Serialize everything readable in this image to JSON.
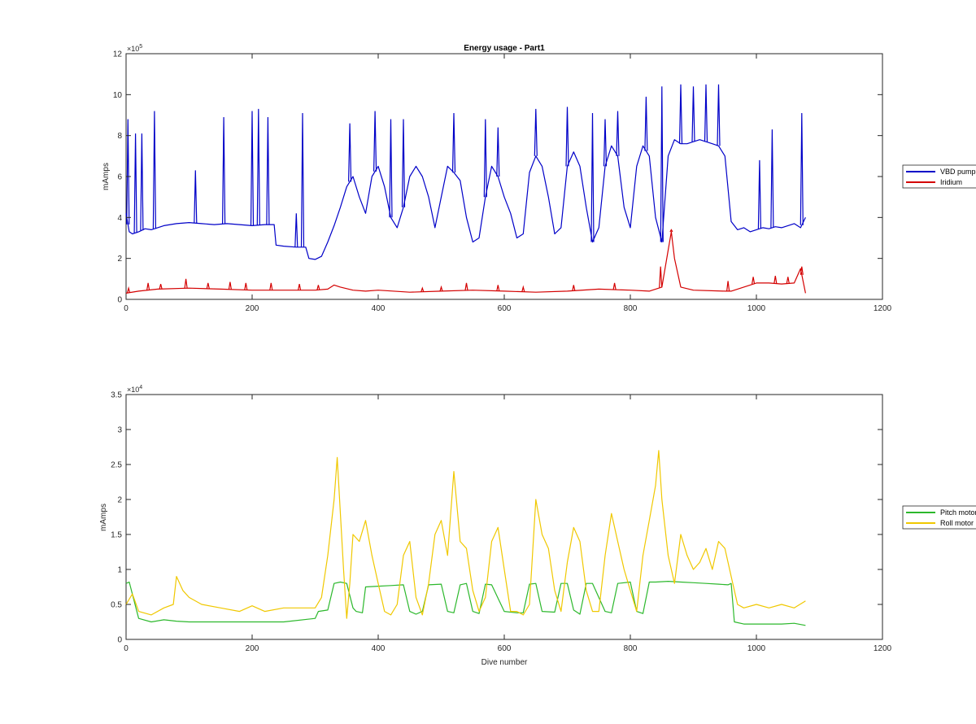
{
  "figure": {
    "background": "#ffffff"
  },
  "chart_data": [
    {
      "type": "line",
      "title": "Energy usage - Part1",
      "xlabel": "",
      "ylabel": "mAmps",
      "xlim": [
        0,
        1200
      ],
      "ylim": [
        0,
        1200000
      ],
      "xticks": [
        0,
        200,
        400,
        600,
        800,
        1000,
        1200
      ],
      "yticks": [
        0,
        2,
        4,
        6,
        8,
        10,
        12
      ],
      "y_exponent_label": "×10",
      "y_exponent": "5",
      "grid": false,
      "legend": "outside-right",
      "series": [
        {
          "name": "VBD pump",
          "color": "#0000c8",
          "x": [
            0,
            5,
            10,
            20,
            30,
            40,
            50,
            60,
            80,
            100,
            120,
            140,
            160,
            180,
            200,
            220,
            235,
            238,
            250,
            270,
            285,
            290,
            300,
            310,
            320,
            330,
            340,
            350,
            360,
            370,
            380,
            390,
            400,
            410,
            420,
            430,
            440,
            450,
            460,
            470,
            480,
            490,
            500,
            510,
            520,
            530,
            540,
            550,
            560,
            570,
            580,
            590,
            600,
            610,
            620,
            630,
            640,
            650,
            660,
            670,
            680,
            690,
            700,
            710,
            720,
            730,
            740,
            750,
            760,
            770,
            780,
            790,
            800,
            810,
            820,
            830,
            840,
            850,
            860,
            870,
            880,
            890,
            900,
            910,
            920,
            930,
            940,
            950,
            960,
            970,
            980,
            990,
            1000,
            1010,
            1020,
            1030,
            1040,
            1050,
            1060,
            1070,
            1078
          ],
          "y": [
            420000,
            330000,
            320000,
            330000,
            345000,
            340000,
            350000,
            360000,
            370000,
            375000,
            370000,
            365000,
            370000,
            365000,
            360000,
            365000,
            365000,
            265000,
            260000,
            255000,
            255000,
            200000,
            195000,
            210000,
            280000,
            360000,
            450000,
            550000,
            600000,
            500000,
            420000,
            600000,
            650000,
            550000,
            400000,
            350000,
            450000,
            600000,
            650000,
            600000,
            500000,
            350000,
            500000,
            650000,
            620000,
            580000,
            400000,
            280000,
            300000,
            500000,
            650000,
            600000,
            500000,
            420000,
            300000,
            320000,
            620000,
            700000,
            650000,
            500000,
            320000,
            350000,
            650000,
            720000,
            650000,
            450000,
            280000,
            350000,
            650000,
            750000,
            700000,
            450000,
            350000,
            650000,
            750000,
            700000,
            400000,
            280000,
            700000,
            780000,
            760000,
            760000,
            770000,
            780000,
            770000,
            760000,
            750000,
            700000,
            380000,
            340000,
            350000,
            330000,
            340000,
            350000,
            345000,
            355000,
            350000,
            360000,
            370000,
            350000,
            400000
          ],
          "spikes": [
            {
              "x": 3,
              "y": 880000
            },
            {
              "x": 15,
              "y": 810000
            },
            {
              "x": 25,
              "y": 810000
            },
            {
              "x": 45,
              "y": 920000
            },
            {
              "x": 110,
              "y": 630000
            },
            {
              "x": 155,
              "y": 890000
            },
            {
              "x": 200,
              "y": 920000
            },
            {
              "x": 210,
              "y": 930000
            },
            {
              "x": 225,
              "y": 890000
            },
            {
              "x": 270,
              "y": 420000
            },
            {
              "x": 280,
              "y": 910000
            },
            {
              "x": 355,
              "y": 860000
            },
            {
              "x": 395,
              "y": 920000
            },
            {
              "x": 420,
              "y": 880000
            },
            {
              "x": 440,
              "y": 880000
            },
            {
              "x": 520,
              "y": 910000
            },
            {
              "x": 570,
              "y": 880000
            },
            {
              "x": 590,
              "y": 840000
            },
            {
              "x": 650,
              "y": 930000
            },
            {
              "x": 700,
              "y": 940000
            },
            {
              "x": 740,
              "y": 910000
            },
            {
              "x": 760,
              "y": 880000
            },
            {
              "x": 780,
              "y": 920000
            },
            {
              "x": 825,
              "y": 990000
            },
            {
              "x": 850,
              "y": 1040000
            },
            {
              "x": 880,
              "y": 1050000
            },
            {
              "x": 900,
              "y": 1040000
            },
            {
              "x": 920,
              "y": 1050000
            },
            {
              "x": 940,
              "y": 1050000
            },
            {
              "x": 1005,
              "y": 680000
            },
            {
              "x": 1025,
              "y": 830000
            },
            {
              "x": 1072,
              "y": 910000
            }
          ]
        },
        {
          "name": "Iridium",
          "color": "#d40000",
          "x": [
            0,
            20,
            50,
            100,
            150,
            200,
            250,
            300,
            320,
            330,
            340,
            360,
            380,
            400,
            450,
            500,
            550,
            600,
            650,
            700,
            750,
            800,
            830,
            850,
            860,
            865,
            870,
            880,
            900,
            950,
            960,
            980,
            1000,
            1020,
            1040,
            1060,
            1070,
            1078
          ],
          "y": [
            30000,
            40000,
            50000,
            55000,
            50000,
            45000,
            45000,
            45000,
            50000,
            70000,
            60000,
            45000,
            40000,
            45000,
            35000,
            40000,
            45000,
            40000,
            35000,
            40000,
            50000,
            45000,
            40000,
            60000,
            240000,
            330000,
            200000,
            60000,
            45000,
            40000,
            40000,
            60000,
            80000,
            80000,
            75000,
            80000,
            150000,
            30000
          ],
          "spikes": [
            {
              "x": 4,
              "y": 55000
            },
            {
              "x": 35,
              "y": 80000
            },
            {
              "x": 55,
              "y": 75000
            },
            {
              "x": 95,
              "y": 100000
            },
            {
              "x": 130,
              "y": 80000
            },
            {
              "x": 165,
              "y": 85000
            },
            {
              "x": 190,
              "y": 80000
            },
            {
              "x": 230,
              "y": 80000
            },
            {
              "x": 275,
              "y": 75000
            },
            {
              "x": 305,
              "y": 70000
            },
            {
              "x": 470,
              "y": 55000
            },
            {
              "x": 500,
              "y": 60000
            },
            {
              "x": 540,
              "y": 80000
            },
            {
              "x": 590,
              "y": 70000
            },
            {
              "x": 630,
              "y": 60000
            },
            {
              "x": 710,
              "y": 70000
            },
            {
              "x": 775,
              "y": 80000
            },
            {
              "x": 848,
              "y": 160000
            },
            {
              "x": 865,
              "y": 340000
            },
            {
              "x": 955,
              "y": 90000
            },
            {
              "x": 995,
              "y": 110000
            },
            {
              "x": 1030,
              "y": 115000
            },
            {
              "x": 1050,
              "y": 110000
            },
            {
              "x": 1072,
              "y": 160000
            }
          ]
        }
      ]
    },
    {
      "type": "line",
      "title": "",
      "xlabel": "Dive number",
      "ylabel": "mAmps",
      "xlim": [
        0,
        1200
      ],
      "ylim": [
        0,
        35000
      ],
      "xticks": [
        0,
        200,
        400,
        600,
        800,
        1000,
        1200
      ],
      "yticks": [
        0,
        0.5,
        1,
        1.5,
        2,
        2.5,
        3,
        3.5
      ],
      "y_exponent_label": "×10",
      "y_exponent": "4",
      "grid": false,
      "legend": "outside-right",
      "series": [
        {
          "name": "Pitch motor",
          "color": "#2cb82c",
          "x": [
            0,
            5,
            20,
            40,
            60,
            80,
            100,
            150,
            200,
            250,
            300,
            305,
            320,
            330,
            340,
            350,
            360,
            365,
            375,
            380,
            400,
            420,
            440,
            450,
            460,
            470,
            480,
            500,
            510,
            520,
            530,
            540,
            550,
            560,
            570,
            580,
            600,
            620,
            630,
            640,
            650,
            660,
            680,
            690,
            700,
            710,
            720,
            730,
            740,
            760,
            770,
            780,
            800,
            810,
            820,
            830,
            840,
            860,
            880,
            900,
            920,
            940,
            955,
            960,
            965,
            980,
            1000,
            1020,
            1040,
            1060,
            1078
          ],
          "y": [
            8000,
            8200,
            3000,
            2500,
            2800,
            2600,
            2500,
            2500,
            2500,
            2500,
            3000,
            4000,
            4200,
            8000,
            8200,
            8000,
            4500,
            4000,
            3800,
            7500,
            7600,
            7700,
            7800,
            4000,
            3600,
            4000,
            7800,
            7900,
            4000,
            3800,
            7800,
            8000,
            4000,
            3700,
            7900,
            7800,
            4000,
            3800,
            3800,
            7900,
            8000,
            4000,
            3900,
            8000,
            8000,
            4200,
            3600,
            8000,
            8000,
            4000,
            3800,
            8000,
            8200,
            4000,
            3700,
            8200,
            8200,
            8300,
            8200,
            8100,
            8000,
            7900,
            7800,
            8000,
            2500,
            2200,
            2200,
            2200,
            2200,
            2300,
            2000
          ]
        },
        {
          "name": "Roll motor",
          "color": "#f0c800",
          "x": [
            0,
            10,
            20,
            40,
            60,
            75,
            80,
            90,
            100,
            120,
            150,
            180,
            200,
            220,
            250,
            280,
            300,
            310,
            320,
            330,
            335,
            340,
            345,
            350,
            355,
            360,
            370,
            380,
            390,
            400,
            410,
            420,
            430,
            440,
            450,
            460,
            470,
            480,
            490,
            500,
            510,
            520,
            530,
            540,
            550,
            560,
            570,
            580,
            590,
            600,
            610,
            620,
            630,
            640,
            650,
            660,
            670,
            680,
            690,
            700,
            710,
            720,
            730,
            740,
            750,
            760,
            770,
            780,
            790,
            800,
            810,
            820,
            830,
            840,
            845,
            850,
            860,
            870,
            880,
            890,
            900,
            910,
            920,
            930,
            940,
            950,
            960,
            970,
            980,
            1000,
            1020,
            1040,
            1060,
            1078
          ],
          "y": [
            5000,
            6500,
            4000,
            3500,
            4500,
            5000,
            9000,
            7000,
            6000,
            5000,
            4500,
            4000,
            4800,
            4000,
            4500,
            4500,
            4500,
            6000,
            12000,
            20000,
            26000,
            18000,
            10000,
            3000,
            8000,
            15000,
            14000,
            17000,
            12000,
            8000,
            4000,
            3500,
            5000,
            12000,
            14000,
            6000,
            3500,
            8000,
            15000,
            17000,
            12000,
            24000,
            14000,
            13000,
            7000,
            4000,
            6000,
            14000,
            16000,
            10000,
            4000,
            4000,
            3500,
            5000,
            20000,
            15000,
            13000,
            7000,
            4000,
            11000,
            16000,
            14000,
            7000,
            4000,
            4000,
            12000,
            18000,
            14000,
            10000,
            7000,
            4000,
            12000,
            17000,
            22000,
            27000,
            20000,
            12000,
            8000,
            15000,
            12000,
            10000,
            11000,
            13000,
            10000,
            14000,
            13000,
            9000,
            5000,
            4500,
            5000,
            4500,
            5000,
            4500,
            5500
          ]
        }
      ]
    }
  ]
}
